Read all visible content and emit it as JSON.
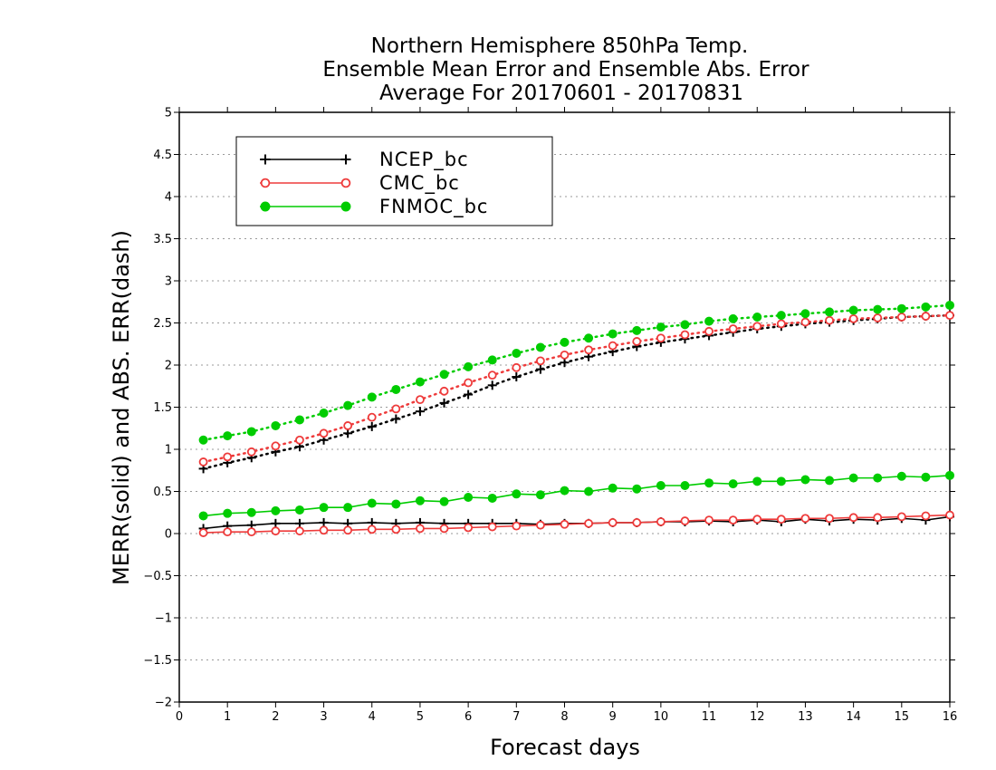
{
  "chart_data": {
    "type": "line",
    "title": [
      "Northern Hemisphere 850hPa Temp.",
      "Ensemble Mean Error and Ensemble Abs. Error",
      "Average For 20170601 - 20170831"
    ],
    "xlabel": "Forecast days",
    "ylabel": "MERR(solid) and ABS. ERR(dash)",
    "xlim": [
      0,
      16
    ],
    "ylim": [
      -2,
      5
    ],
    "xticks": [
      "0",
      "1",
      "2",
      "3",
      "4",
      "5",
      "6",
      "7",
      "8",
      "9",
      "10",
      "11",
      "12",
      "13",
      "14",
      "15",
      "16"
    ],
    "yticks": [
      "−2",
      "−1.5",
      "−1",
      "−0.5",
      "0",
      "0.5",
      "1",
      "1.5",
      "2",
      "2.5",
      "3",
      "3.5",
      "4",
      "4.5",
      "5"
    ],
    "grid": true,
    "legend_position": "top-left",
    "x": [
      0.5,
      1,
      1.5,
      2,
      2.5,
      3,
      3.5,
      4,
      4.5,
      5,
      5.5,
      6,
      6.5,
      7,
      7.5,
      8,
      8.5,
      9,
      9.5,
      10,
      10.5,
      11,
      11.5,
      12,
      12.5,
      13,
      13.5,
      14,
      14.5,
      15,
      15.5,
      16
    ],
    "series": [
      {
        "name": "NCEP_bc",
        "color": "#000000",
        "marker": "plus",
        "merr": [
          0.06,
          0.09,
          0.1,
          0.12,
          0.12,
          0.13,
          0.12,
          0.13,
          0.12,
          0.13,
          0.12,
          0.12,
          0.12,
          0.12,
          0.11,
          0.12,
          0.12,
          0.13,
          0.13,
          0.14,
          0.14,
          0.15,
          0.14,
          0.16,
          0.14,
          0.17,
          0.15,
          0.17,
          0.16,
          0.18,
          0.16,
          0.2
        ],
        "abs_err": [
          0.77,
          0.84,
          0.9,
          0.97,
          1.03,
          1.11,
          1.19,
          1.27,
          1.36,
          1.45,
          1.55,
          1.65,
          1.76,
          1.86,
          1.95,
          2.03,
          2.1,
          2.16,
          2.22,
          2.27,
          2.31,
          2.35,
          2.39,
          2.43,
          2.46,
          2.49,
          2.51,
          2.53,
          2.55,
          2.57,
          2.58,
          2.59
        ]
      },
      {
        "name": "CMC_bc",
        "color": "#ee3b3b",
        "marker": "open-circle",
        "merr": [
          0.01,
          0.02,
          0.02,
          0.03,
          0.03,
          0.04,
          0.04,
          0.05,
          0.05,
          0.06,
          0.06,
          0.07,
          0.08,
          0.09,
          0.1,
          0.11,
          0.12,
          0.13,
          0.13,
          0.14,
          0.15,
          0.16,
          0.16,
          0.17,
          0.17,
          0.18,
          0.18,
          0.19,
          0.19,
          0.2,
          0.21,
          0.22
        ],
        "abs_err": [
          0.85,
          0.91,
          0.97,
          1.04,
          1.11,
          1.19,
          1.28,
          1.38,
          1.48,
          1.59,
          1.69,
          1.79,
          1.88,
          1.97,
          2.05,
          2.12,
          2.18,
          2.23,
          2.28,
          2.32,
          2.36,
          2.4,
          2.43,
          2.46,
          2.49,
          2.51,
          2.53,
          2.55,
          2.56,
          2.57,
          2.58,
          2.59
        ]
      },
      {
        "name": "FNMOC_bc",
        "color": "#00cc00",
        "marker": "filled-circle",
        "merr": [
          0.21,
          0.24,
          0.25,
          0.27,
          0.28,
          0.31,
          0.31,
          0.36,
          0.35,
          0.39,
          0.38,
          0.43,
          0.42,
          0.47,
          0.46,
          0.51,
          0.5,
          0.54,
          0.53,
          0.57,
          0.57,
          0.6,
          0.59,
          0.62,
          0.62,
          0.64,
          0.63,
          0.66,
          0.66,
          0.68,
          0.67,
          0.69
        ],
        "abs_err": [
          1.11,
          1.16,
          1.21,
          1.28,
          1.35,
          1.43,
          1.52,
          1.62,
          1.71,
          1.8,
          1.89,
          1.98,
          2.06,
          2.14,
          2.21,
          2.27,
          2.32,
          2.37,
          2.41,
          2.45,
          2.48,
          2.52,
          2.55,
          2.57,
          2.59,
          2.61,
          2.63,
          2.65,
          2.66,
          2.67,
          2.69,
          2.71
        ]
      }
    ]
  }
}
